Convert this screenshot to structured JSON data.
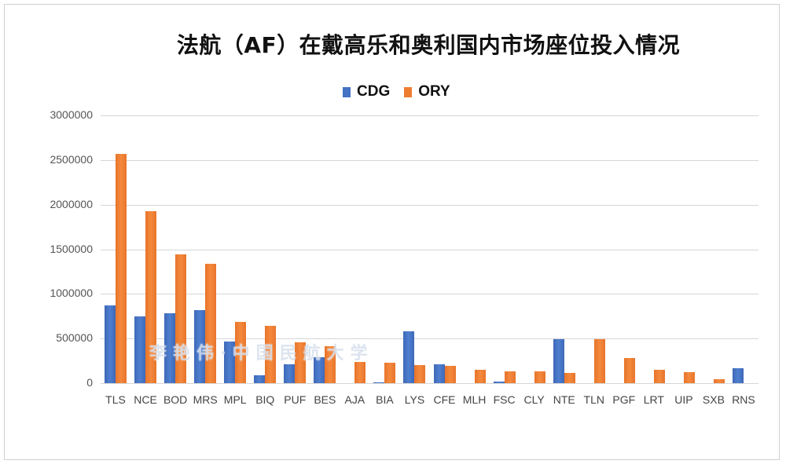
{
  "chart_data": {
    "type": "bar",
    "title": "法航（AF）在戴高乐和奥利国内市场座位投入情况",
    "xlabel": "",
    "ylabel": "",
    "ylim": [
      0,
      3000000
    ],
    "yticks": [
      0,
      500000,
      1000000,
      1500000,
      2000000,
      2500000,
      3000000
    ],
    "ytick_labels": [
      "0",
      "500000",
      "1000000",
      "1500000",
      "2000000",
      "2500000",
      "3000000"
    ],
    "grid": true,
    "legend_position": "top",
    "categories": [
      "TLS",
      "NCE",
      "BOD",
      "MRS",
      "MPL",
      "BIQ",
      "PUF",
      "BES",
      "AJA",
      "BIA",
      "LYS",
      "CFE",
      "MLH",
      "FSC",
      "CLY",
      "NTE",
      "TLN",
      "PGF",
      "LRT",
      "UIP",
      "SXB",
      "RNS"
    ],
    "series": [
      {
        "name": "CDG",
        "color": "#4472C4",
        "values": [
          875000,
          746000,
          781000,
          817000,
          468000,
          88000,
          212000,
          291000,
          0,
          12000,
          583000,
          208000,
          0,
          18000,
          0,
          497000,
          0,
          0,
          0,
          0,
          0,
          168000
        ]
      },
      {
        "name": "ORY",
        "color": "#ED7D31",
        "values": [
          2567000,
          1927000,
          1442000,
          1333000,
          689000,
          641000,
          459000,
          418000,
          241000,
          226000,
          203000,
          191000,
          150000,
          132000,
          132000,
          117000,
          491000,
          279000,
          147000,
          126000,
          47000,
          0
        ]
      }
    ],
    "annotations": [
      "李艳伟·中国民航大学"
    ]
  },
  "legend": {
    "items": [
      {
        "label": "CDG",
        "color": "#4472C4"
      },
      {
        "label": "ORY",
        "color": "#ED7D31"
      }
    ]
  },
  "watermark": "李艳伟·中国民航大学"
}
